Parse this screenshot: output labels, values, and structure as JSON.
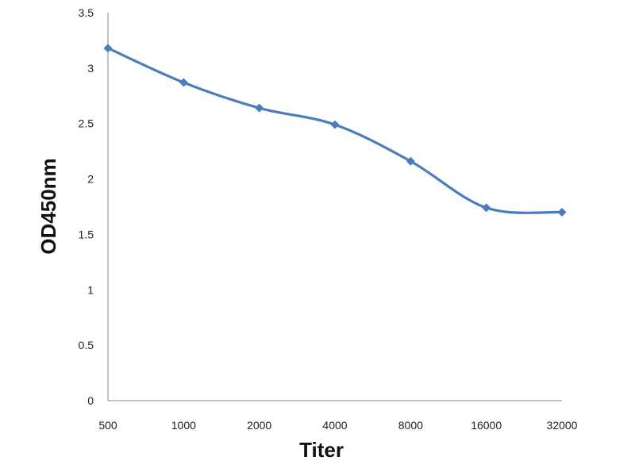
{
  "chart_data": {
    "type": "line",
    "categories": [
      "500",
      "1000",
      "2000",
      "4000",
      "8000",
      "16000",
      "32000"
    ],
    "series": [
      {
        "values": [
          3.18,
          2.87,
          2.64,
          2.49,
          2.16,
          1.74,
          1.7
        ],
        "color": "#4A7EBB",
        "marker": "diamond",
        "smooth": true
      }
    ],
    "xlabel": "Titer",
    "ylabel": "OD450nm",
    "ylim": [
      0,
      3.5
    ],
    "y_ticks": [
      "0",
      "0.5",
      "1",
      "1.5",
      "2",
      "2.5",
      "3",
      "3.5"
    ],
    "grid": false,
    "legend": "none"
  }
}
